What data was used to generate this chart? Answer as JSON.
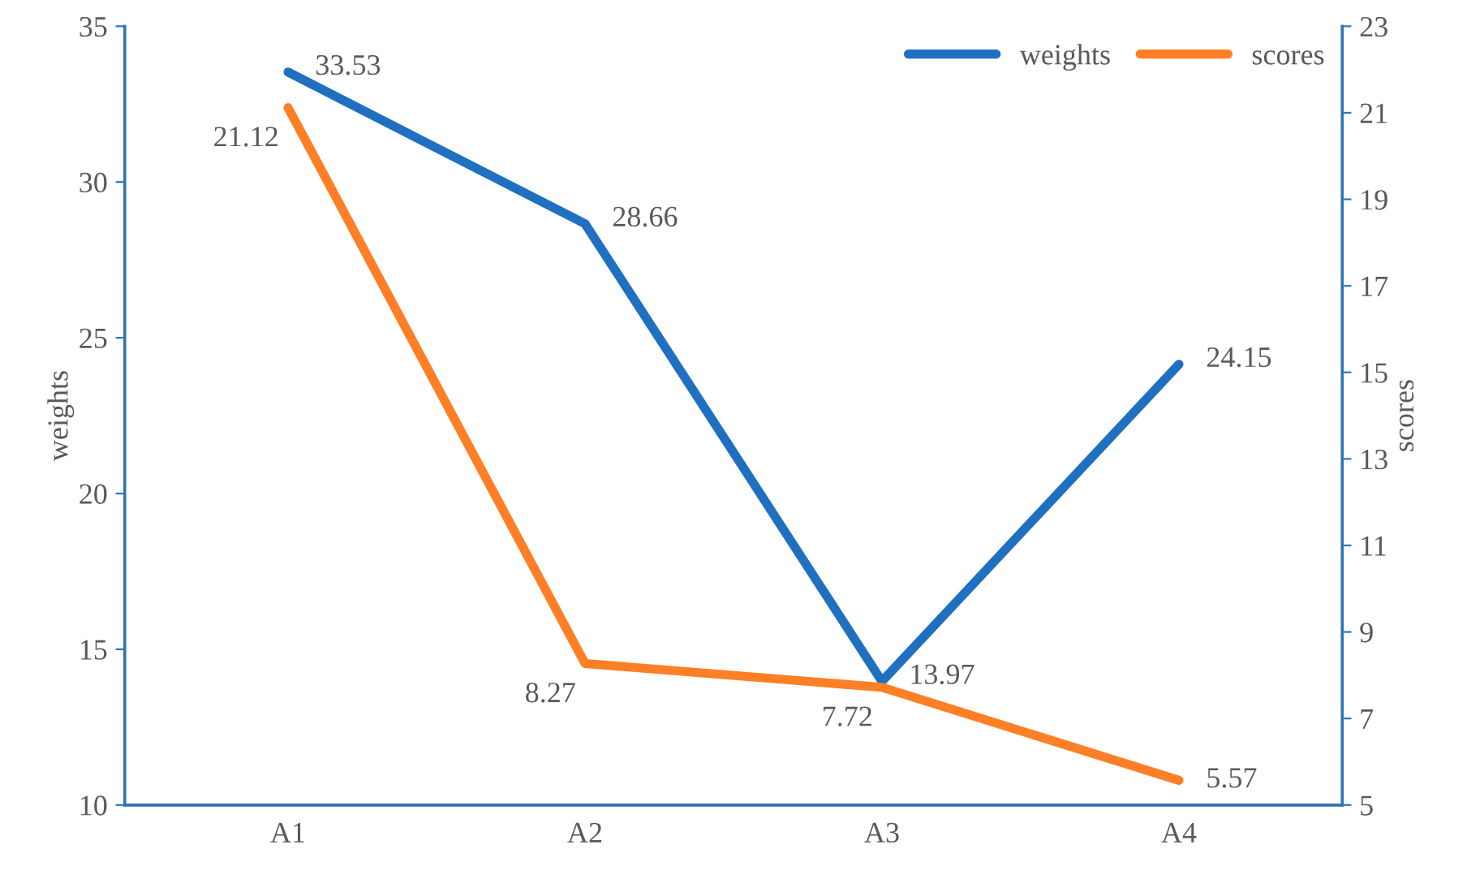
{
  "chart_data": {
    "type": "line",
    "categories": [
      "A1",
      "A2",
      "A3",
      "A4"
    ],
    "series": [
      {
        "name": "weights",
        "color": "#1f70c1",
        "values": [
          33.53,
          28.66,
          13.97,
          24.15
        ]
      },
      {
        "name": "scores",
        "color": "#ff7f27",
        "values": [
          21.12,
          8.27,
          7.72,
          5.57
        ],
        "axis": "y2"
      }
    ],
    "ylabel": "weights",
    "y2label": "scores",
    "ylim": [
      10,
      35
    ],
    "yticks": [
      10,
      15,
      20,
      25,
      30,
      35
    ],
    "y2lim": [
      5,
      23
    ],
    "y2ticks": [
      5,
      7,
      9,
      11,
      13,
      15,
      17,
      19,
      21,
      23
    ],
    "data_labels": true,
    "legend": "top right",
    "grid": false,
    "marker": "none",
    "line_style": "solid"
  }
}
